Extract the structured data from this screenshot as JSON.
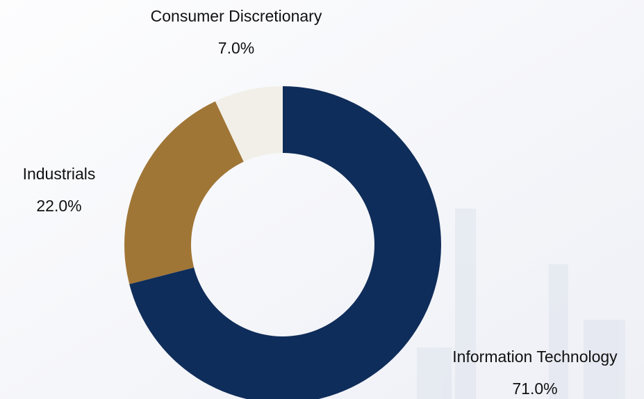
{
  "chart_data": {
    "type": "donut",
    "categories": [
      "Information Technology",
      "Industrials",
      "Consumer Discretionary"
    ],
    "values": [
      71,
      22,
      7
    ],
    "value_labels": [
      "71.0%",
      "22.0%",
      "7.0%"
    ],
    "colors": [
      "#0f2d5a",
      "#a07636",
      "#f1efe8"
    ]
  }
}
